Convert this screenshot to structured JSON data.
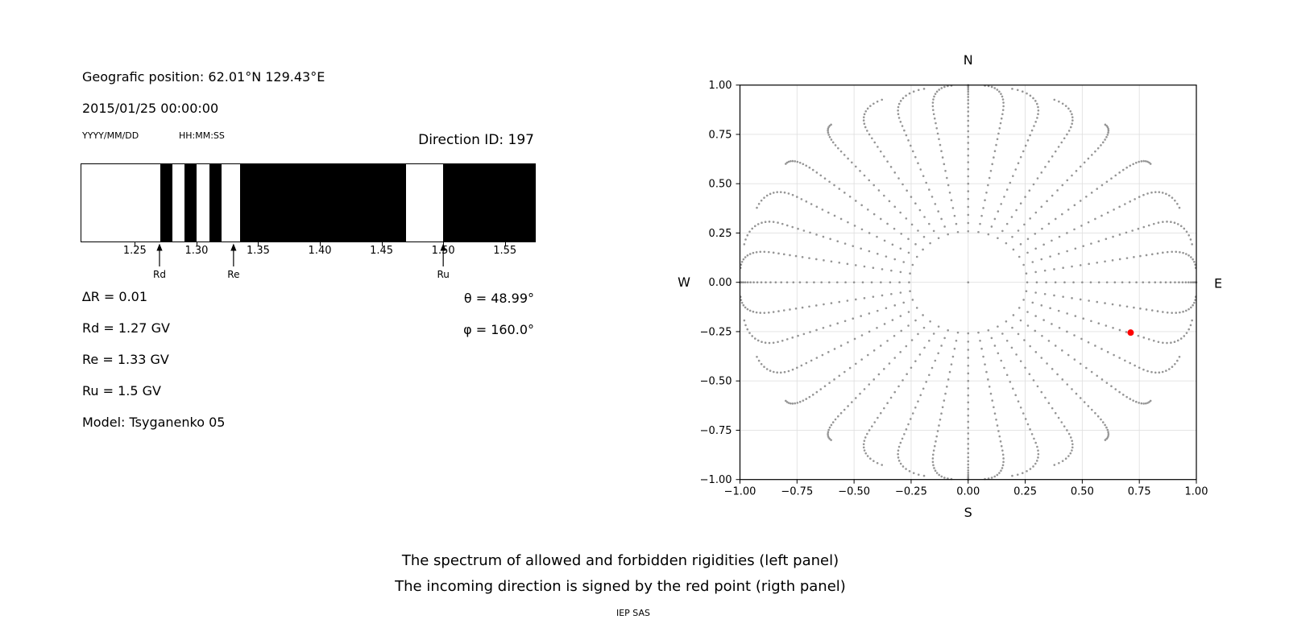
{
  "header": {
    "geo_position": "Geografic position: 62.01°N 129.43°E",
    "datetime": "2015/01/25 00:00:00",
    "date_format": "YYYY/MM/DD",
    "time_format": "HH:MM:SS",
    "direction_id": "Direction ID: 197"
  },
  "params": {
    "delta_r": "∆R = 0.01",
    "rd": "Rd = 1.27 GV",
    "re": "Re = 1.33 GV",
    "ru": "Ru = 1.5 GV",
    "model": "Model: Tsyganenko 05",
    "theta": "θ = 48.99°",
    "phi": "φ = 160.0°"
  },
  "caption": {
    "line1": "The spectrum of allowed and forbidden rigidities (left panel)",
    "line2": "The incoming direction is signed by the red point (rigth panel)",
    "credit": "IEP SAS"
  },
  "chart_data": [
    {
      "type": "bar",
      "name": "rigidity-spectrum",
      "description": "Binary band chart: white = allowed rigidities, black = forbidden rigidities",
      "x_range": [
        1.206,
        1.575
      ],
      "x_ticks": [
        {
          "value": 1.25,
          "label": "1.25"
        },
        {
          "value": 1.3,
          "label": "1.30"
        },
        {
          "value": 1.35,
          "label": "1.35"
        },
        {
          "value": 1.4,
          "label": "1.40"
        },
        {
          "value": 1.45,
          "label": "1.45"
        },
        {
          "value": 1.5,
          "label": "1.50"
        },
        {
          "value": 1.55,
          "label": "1.55"
        }
      ],
      "forbidden_segments": [
        [
          1.27,
          1.28
        ],
        [
          1.29,
          1.3
        ],
        [
          1.31,
          1.32
        ],
        [
          1.335,
          1.47
        ],
        [
          1.5,
          1.575
        ]
      ],
      "allowed_color": "#ffffff",
      "forbidden_color": "#000000",
      "markers": [
        {
          "label": "Rd",
          "value": 1.27
        },
        {
          "label": "Re",
          "value": 1.33
        },
        {
          "label": "Ru",
          "value": 1.5
        }
      ]
    },
    {
      "type": "scatter",
      "name": "incoming-direction-map",
      "xlim": [
        -1,
        1
      ],
      "ylim": [
        -1,
        1
      ],
      "x_ticks": [
        {
          "value": -1.0,
          "label": "−1.00"
        },
        {
          "value": -0.75,
          "label": "−0.75"
        },
        {
          "value": -0.5,
          "label": "−0.50"
        },
        {
          "value": -0.25,
          "label": "−0.25"
        },
        {
          "value": 0.0,
          "label": "0.00"
        },
        {
          "value": 0.25,
          "label": "0.25"
        },
        {
          "value": 0.5,
          "label": "0.50"
        },
        {
          "value": 0.75,
          "label": "0.75"
        },
        {
          "value": 1.0,
          "label": "1.00"
        }
      ],
      "y_ticks": [
        {
          "value": -1.0,
          "label": "−1.00"
        },
        {
          "value": -0.75,
          "label": "−0.75"
        },
        {
          "value": -0.5,
          "label": "−0.50"
        },
        {
          "value": -0.25,
          "label": "−0.25"
        },
        {
          "value": 0.0,
          "label": "0.00"
        },
        {
          "value": 0.25,
          "label": "0.25"
        },
        {
          "value": 0.5,
          "label": "0.50"
        },
        {
          "value": 0.75,
          "label": "0.75"
        },
        {
          "value": 1.0,
          "label": "1.00"
        }
      ],
      "compass": {
        "top": "N",
        "bottom": "S",
        "left": "W",
        "right": "E"
      },
      "grid": true,
      "direction_grid": {
        "description": "Gray dots: direction grid, radius = sin(zenith), one ray per azimuth, tips curl toward nearest cardinal direction",
        "azimuth_start_deg": 0,
        "azimuth_step_deg": 10,
        "azimuth_count": 36,
        "zenith_start_deg": 15,
        "zenith_step_deg": 2.5,
        "zenith_end_deg": 90,
        "curl_amplitude_deg": 9,
        "curl_onset_deg": 60,
        "center_dot": [
          0,
          0
        ]
      },
      "red_point": {
        "x": 0.712,
        "y": -0.255
      },
      "dot_color": "#8a8a8a",
      "red_color": "#ff0000",
      "grid_color": "#e0e0e0"
    }
  ]
}
